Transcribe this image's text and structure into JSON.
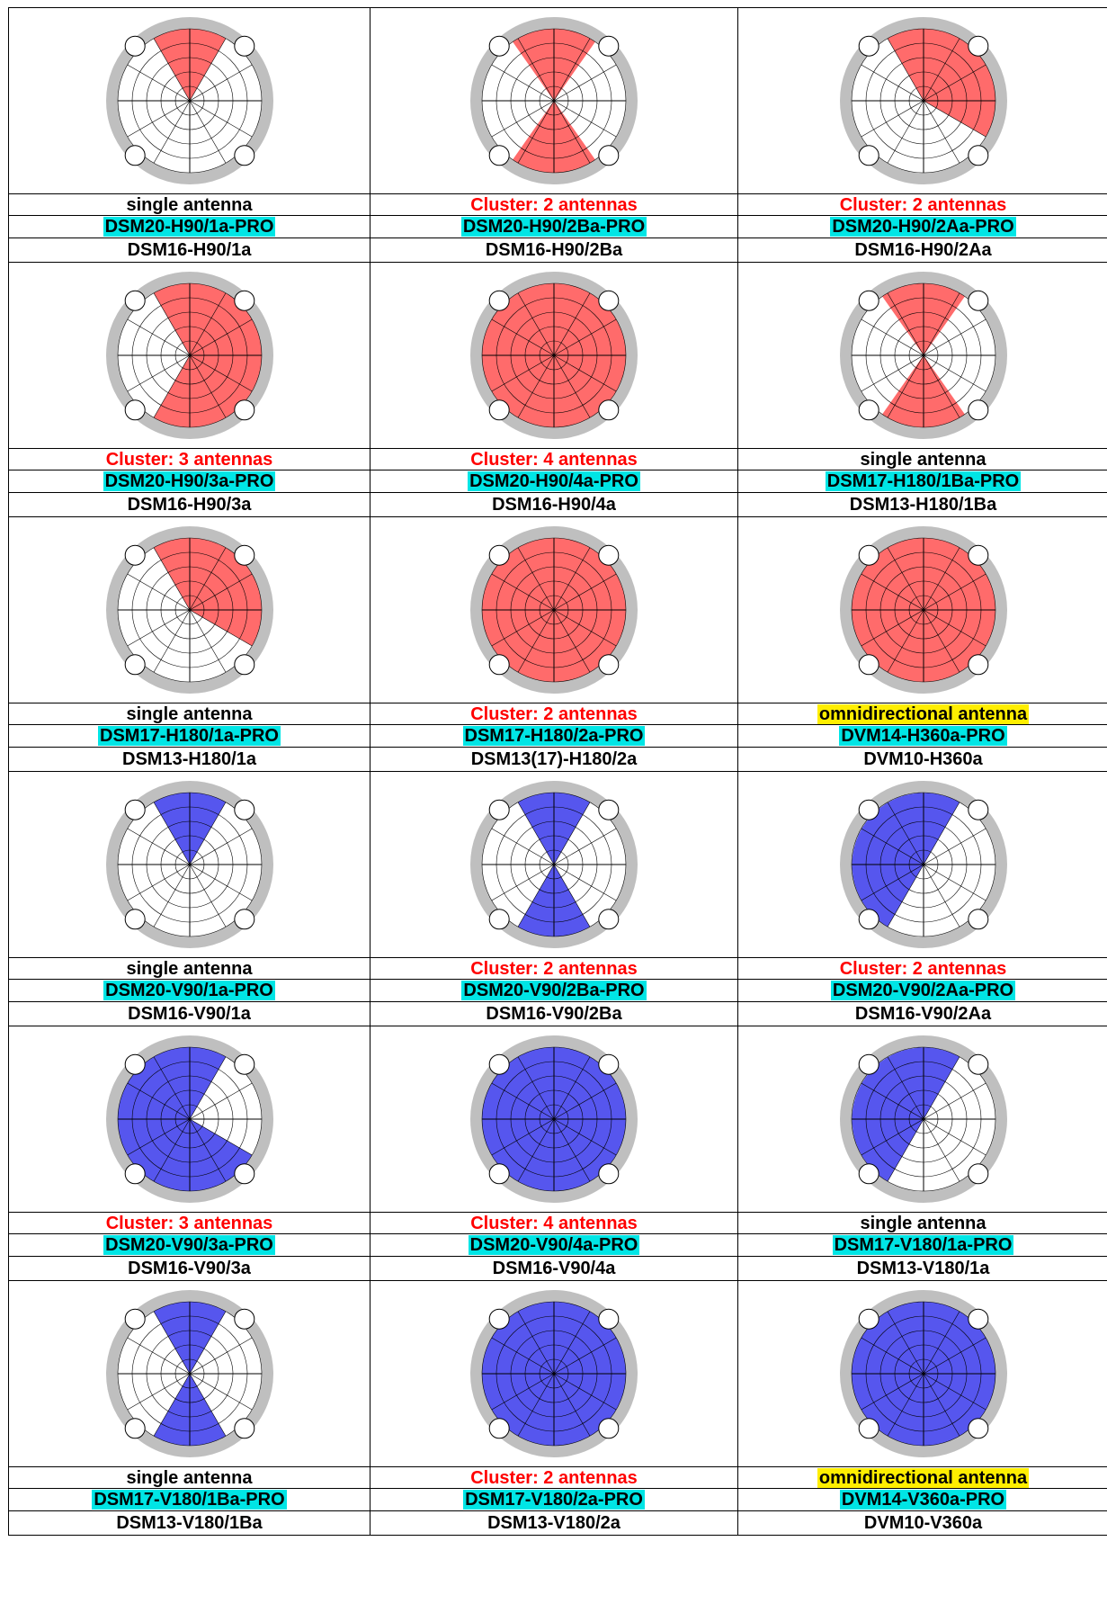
{
  "colors": {
    "red_fill": "#ff6b6b",
    "blue_fill": "#5656ee",
    "ring": "#bfbfbf",
    "label_highlight": "#00e5e5",
    "omni_highlight": "#ffee00",
    "cluster_text": "#ff0000"
  },
  "rows": [
    {
      "cells": [
        {
          "color": "red",
          "sectors": [
            [
              -30,
              30
            ]
          ],
          "type": "single antenna",
          "pro": "DSM20-H90/1a-PRO",
          "model": "DSM16-H90/1a"
        },
        {
          "color": "red",
          "sectors": [
            [
              -35,
              35
            ],
            [
              145,
              215
            ]
          ],
          "type": "Cluster: 2 antennas",
          "pro": "DSM20-H90/2Ba-PRO",
          "model": "DSM16-H90/2Ba"
        },
        {
          "color": "red",
          "sectors": [
            [
              -30,
              120
            ]
          ],
          "type": "Cluster: 2 antennas",
          "pro": "DSM20-H90/2Aa-PRO",
          "model": "DSM16-H90/2Aa"
        }
      ]
    },
    {
      "cells": [
        {
          "color": "red",
          "sectors": [
            [
              -30,
              210
            ]
          ],
          "type": "Cluster: 3 antennas",
          "pro": "DSM20-H90/3a-PRO",
          "model": "DSM16-H90/3a"
        },
        {
          "color": "red",
          "sectors": [
            [
              0,
              360
            ]
          ],
          "type": "Cluster: 4 antennas",
          "pro": "DSM20-H90/4a-PRO",
          "model": "DSM16-H90/4a"
        },
        {
          "color": "red",
          "sectors": [
            [
              -35,
              35
            ],
            [
              145,
              215
            ]
          ],
          "type": "single antenna",
          "pro": "DSM17-H180/1Ba-PRO",
          "model": "DSM13-H180/1Ba"
        }
      ]
    },
    {
      "cells": [
        {
          "color": "red",
          "sectors": [
            [
              -30,
              120
            ]
          ],
          "type": "single antenna",
          "pro": "DSM17-H180/1a-PRO",
          "model": "DSM13-H180/1a"
        },
        {
          "color": "red",
          "sectors": [
            [
              0,
              360
            ]
          ],
          "type": "Cluster: 2 antennas",
          "pro": "DSM17-H180/2a-PRO",
          "model": "DSM13(17)-H180/2a"
        },
        {
          "color": "red",
          "sectors": [
            [
              0,
              360
            ]
          ],
          "type": "omnidirectional antenna",
          "pro": "DVM14-H360a-PRO",
          "model": "DVM10-H360a"
        }
      ]
    },
    {
      "cells": [
        {
          "color": "blue",
          "sectors": [
            [
              -30,
              30
            ]
          ],
          "type": "single antenna",
          "pro": "DSM20-V90/1a-PRO",
          "model": "DSM16-V90/1a"
        },
        {
          "color": "blue",
          "sectors": [
            [
              -30,
              30
            ],
            [
              150,
              210
            ]
          ],
          "type": "Cluster: 2 antennas",
          "pro": "DSM20-V90/2Ba-PRO",
          "model": "DSM16-V90/2Ba"
        },
        {
          "color": "blue",
          "sectors": [
            [
              210,
              390
            ]
          ],
          "type": "Cluster: 2 antennas",
          "pro": "DSM20-V90/2Aa-PRO",
          "model": "DSM16-V90/2Aa"
        }
      ]
    },
    {
      "cells": [
        {
          "color": "blue",
          "sectors": [
            [
              120,
              390
            ]
          ],
          "type": "Cluster: 3 antennas",
          "pro": "DSM20-V90/3a-PRO",
          "model": "DSM16-V90/3a"
        },
        {
          "color": "blue",
          "sectors": [
            [
              0,
              360
            ]
          ],
          "type": "Cluster: 4 antennas",
          "pro": "DSM20-V90/4a-PRO",
          "model": "DSM16-V90/4a"
        },
        {
          "color": "blue",
          "sectors": [
            [
              210,
              390
            ]
          ],
          "type": "single antenna",
          "pro": "DSM17-V180/1a-PRO",
          "model": "DSM13-V180/1a"
        }
      ]
    },
    {
      "cells": [
        {
          "color": "blue",
          "sectors": [
            [
              -30,
              30
            ],
            [
              150,
              210
            ]
          ],
          "type": "single antenna",
          "pro": "DSM17-V180/1Ba-PRO",
          "model": "DSM13-V180/1Ba"
        },
        {
          "color": "blue",
          "sectors": [
            [
              0,
              360
            ]
          ],
          "type": "Cluster: 2 antennas",
          "pro": "DSM17-V180/2a-PRO",
          "model": "DSM13-V180/2a"
        },
        {
          "color": "blue",
          "sectors": [
            [
              0,
              360
            ]
          ],
          "type": "omnidirectional antenna",
          "pro": "DVM14-V360a-PRO",
          "model": "DVM10-V360a"
        }
      ]
    }
  ]
}
